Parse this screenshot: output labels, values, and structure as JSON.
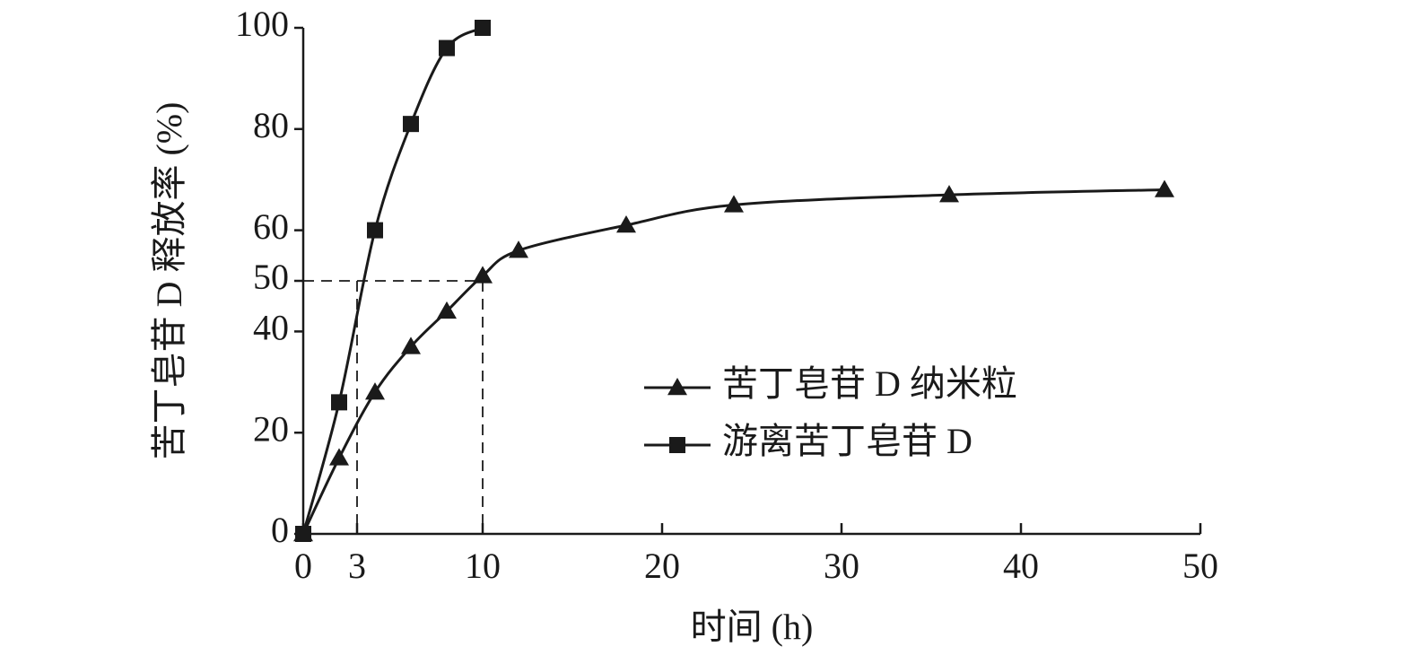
{
  "chart_data": {
    "type": "line",
    "xlabel": "时间 (h)",
    "ylabel": "苦丁皂苷 D 释放率 (%)",
    "series": [
      {
        "name": "苦丁皂苷 D 纳米粒",
        "color": "#1a1a1a",
        "marker": "triangle",
        "x": [
          0,
          2,
          4,
          6,
          8,
          10,
          12,
          18,
          24,
          36,
          48
        ],
        "values": [
          0,
          15,
          28,
          37,
          44,
          51,
          56,
          61,
          65,
          67,
          68
        ]
      },
      {
        "name": "游离苦丁皂苷 D",
        "color": "#1a1a1a",
        "marker": "square",
        "x": [
          0,
          2,
          4,
          6,
          8,
          10
        ],
        "values": [
          0,
          26,
          60,
          81,
          96,
          100
        ]
      }
    ],
    "xlim": [
      0,
      50
    ],
    "xticks": [
      0,
      3,
      10,
      20,
      30,
      40,
      50
    ],
    "ylim": [
      0,
      100
    ],
    "yticks": [
      0,
      20,
      40,
      50,
      60,
      80,
      100
    ],
    "guides": {
      "y": 50,
      "x": [
        3,
        10
      ]
    },
    "legend": "lower right"
  }
}
